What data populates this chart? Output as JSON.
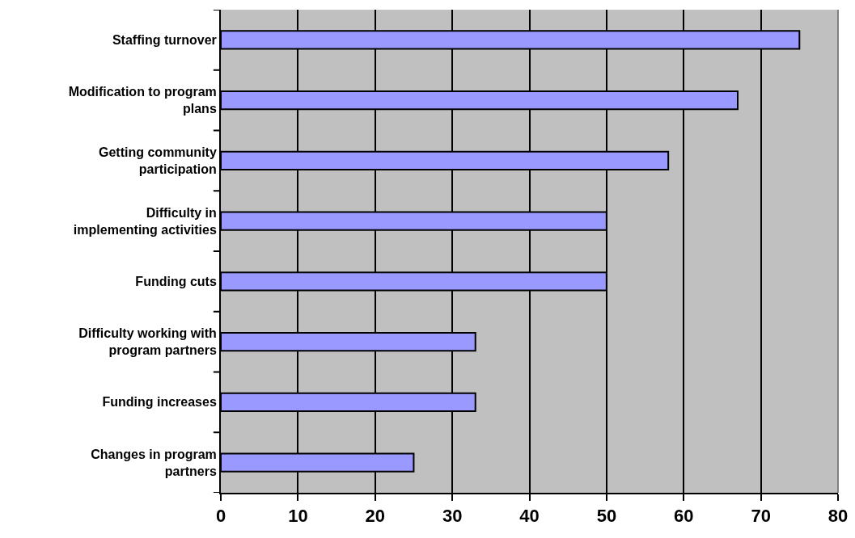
{
  "chart_data": {
    "type": "bar",
    "orientation": "horizontal",
    "categories": [
      "Staffing turnover",
      "Modification to program plans",
      "Getting community participation",
      "Difficulty in implementing activities",
      "Funding cuts",
      "Difficulty working with program partners",
      "Funding increases",
      "Changes in program partners"
    ],
    "values": [
      75,
      67,
      58,
      50,
      50,
      33,
      33,
      25
    ],
    "color": "#9999ff",
    "xlim": [
      0,
      80
    ],
    "xticks": [
      0,
      10,
      20,
      30,
      40,
      50,
      60,
      70,
      80
    ],
    "grid": "x"
  }
}
